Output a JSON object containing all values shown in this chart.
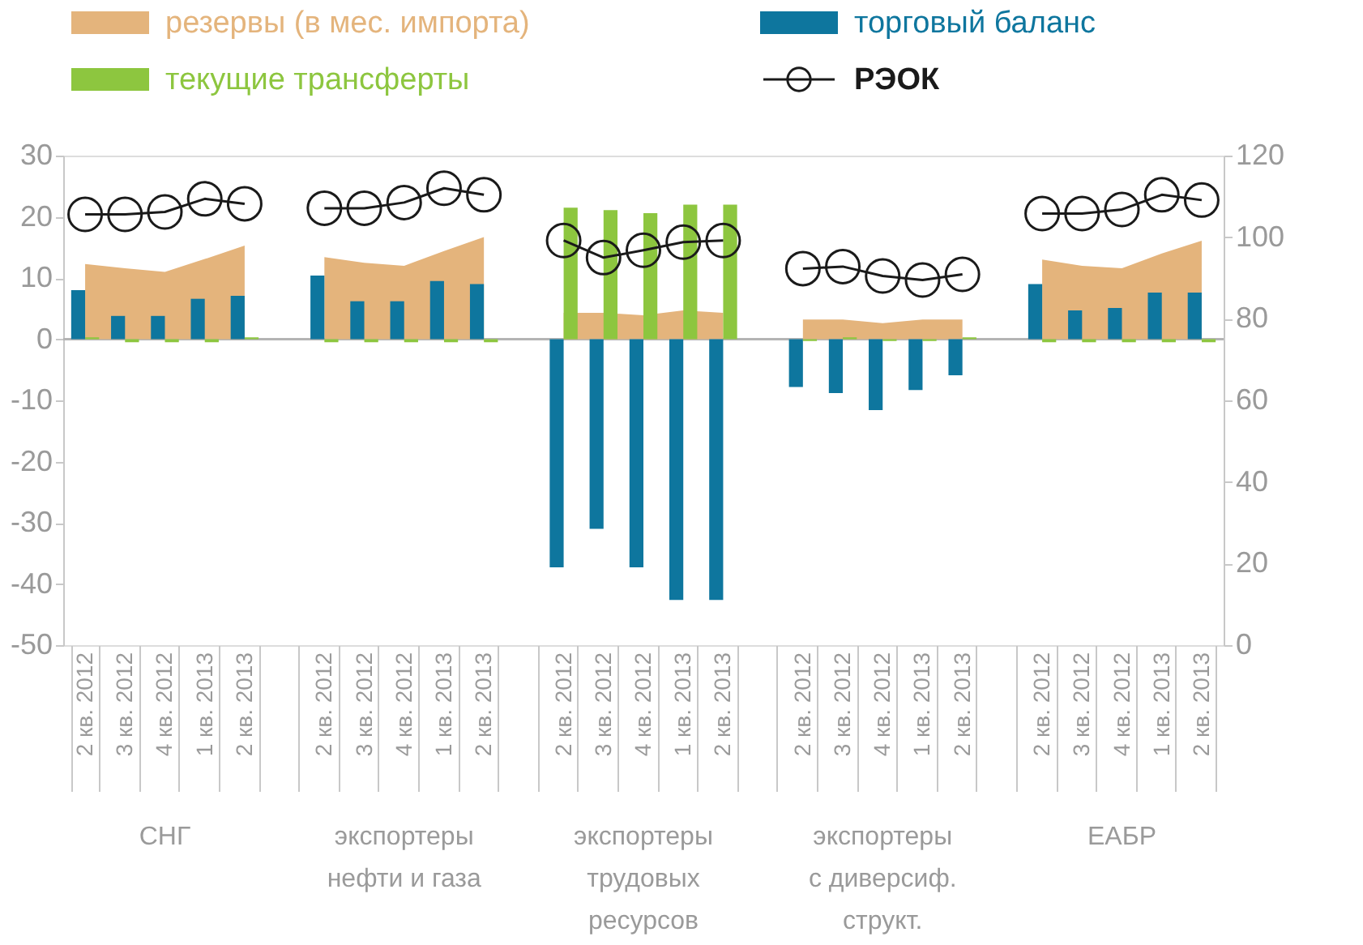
{
  "chart_data": {
    "type": "bar",
    "categories": [
      "2 кв. 2012",
      "3 кв. 2012",
      "4 кв. 2012",
      "1 кв. 2013",
      "2 кв. 2013",
      null,
      "2 кв. 2012",
      "3 кв. 2012",
      "4 кв. 2012",
      "1 кв. 2013",
      "2 кв. 2013",
      null,
      "2 кв. 2012",
      "3 кв. 2012",
      "4 кв. 2012",
      "1 кв. 2013",
      "2 кв. 2013",
      null,
      "2 кв. 2012",
      "3 кв. 2012",
      "4 кв. 2012",
      "1 кв. 2013",
      "2 кв. 2013",
      null,
      "2 кв. 2012",
      "3 кв. 2012",
      "4 кв. 2012",
      "1 кв. 2013",
      "2 кв. 2013"
    ],
    "series": [
      {
        "name": "резервы (в мес. импорта)",
        "type": "area",
        "color": "#e4b47c",
        "values": [
          12.3,
          11.6,
          11.0,
          13.1,
          15.3,
          null,
          13.4,
          12.5,
          12.0,
          14.4,
          16.7,
          null,
          4.3,
          4.3,
          3.9,
          4.7,
          4.3,
          null,
          3.2,
          3.2,
          2.6,
          3.2,
          3.2,
          null,
          13.0,
          12.0,
          11.6,
          14.0,
          16.1
        ]
      },
      {
        "name": "торговый баланс",
        "type": "bar",
        "color": "#0e769e",
        "values": [
          8.0,
          3.8,
          3.8,
          6.6,
          7.1,
          null,
          10.4,
          6.2,
          6.2,
          9.5,
          9.0,
          null,
          -37.3,
          -31.0,
          -37.3,
          -42.6,
          -42.6,
          null,
          -7.8,
          -8.8,
          -11.6,
          -8.3,
          -5.9,
          null,
          9.0,
          4.7,
          5.1,
          7.6,
          7.6
        ]
      },
      {
        "name": "текущие трансферты",
        "type": "bar",
        "color": "#8dc63f",
        "values": [
          0.3,
          -0.5,
          -0.5,
          -0.5,
          0.3,
          null,
          -0.5,
          -0.5,
          -0.5,
          -0.5,
          -0.5,
          null,
          21.5,
          21.1,
          20.6,
          22.0,
          22.0,
          null,
          -0.3,
          0.3,
          -0.3,
          -0.3,
          0.3,
          null,
          -0.5,
          -0.5,
          -0.5,
          -0.5,
          -0.5
        ]
      },
      {
        "name": "РЭОК",
        "type": "line",
        "axis": "y2",
        "color": "#1a1a1a",
        "marker": "circle",
        "values": [
          105.6,
          105.6,
          106.2,
          109.4,
          108.2,
          null,
          107.1,
          107.1,
          108.5,
          112.0,
          110.4,
          null,
          99.2,
          95.0,
          96.8,
          98.8,
          99.2,
          null,
          92.3,
          92.8,
          90.5,
          89.5,
          90.9,
          null,
          105.8,
          105.8,
          106.8,
          110.4,
          109.1
        ]
      }
    ],
    "ylim": [
      -50,
      30
    ],
    "yticks": [
      -50,
      -40,
      -30,
      -20,
      -10,
      0,
      10,
      20,
      30
    ],
    "y2lim": [
      0,
      120
    ],
    "y2ticks": [
      0,
      20,
      40,
      60,
      80,
      100,
      120
    ],
    "ref_lines": [
      {
        "axis": "y",
        "value": 0,
        "color": "#b4b4b4"
      }
    ],
    "annotations": [
      "СНГ",
      "экспортеры\nнефти и газа",
      "экспортеры\nтрудовых\nресурсов",
      "экспортеры\nс диверсиф.\nструкт.",
      "ЕАБР"
    ],
    "legend": "top",
    "grid": false
  }
}
